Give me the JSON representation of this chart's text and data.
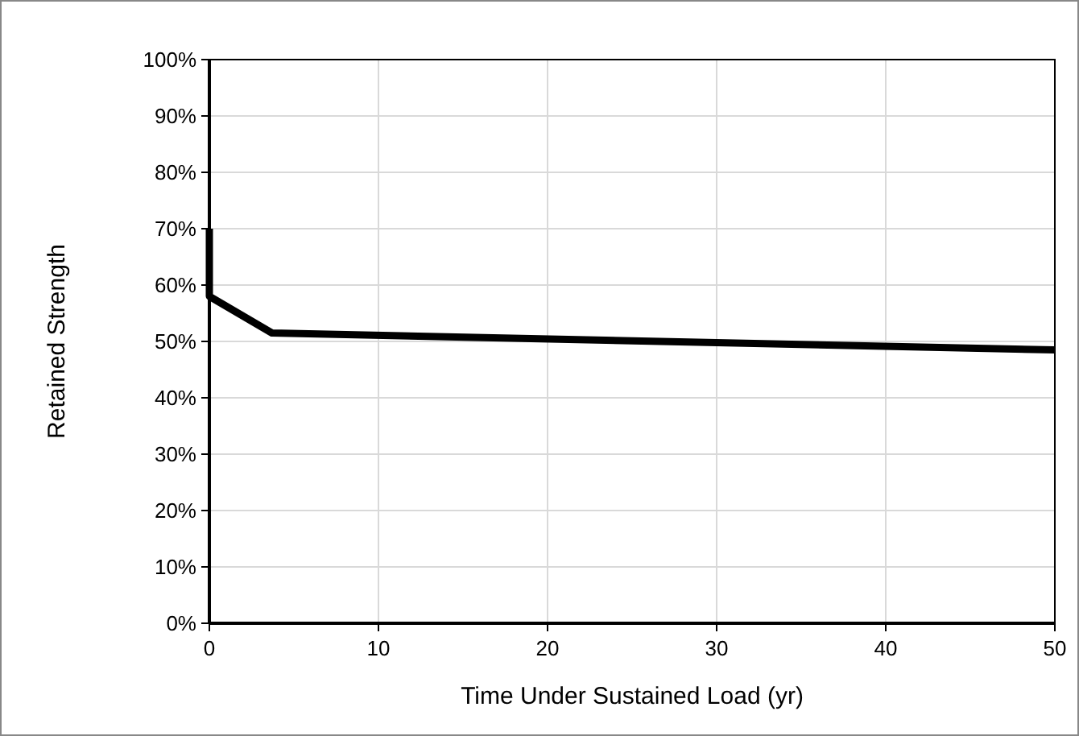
{
  "chart_data": {
    "type": "line",
    "xlabel": "Time Under Sustained Load (yr)",
    "ylabel": "Retained Strength",
    "x": [
      0,
      0,
      3.7,
      50
    ],
    "series": [
      {
        "color": "#000000",
        "values": [
          70,
          58,
          51.5,
          48.5
        ]
      }
    ],
    "xlim": [
      0,
      50
    ],
    "xticks": [
      0,
      10,
      20,
      30,
      40,
      50
    ],
    "ylim": [
      0,
      100
    ],
    "yticks": [
      {
        "value": 0,
        "label": "0%"
      },
      {
        "value": 10,
        "label": "10%"
      },
      {
        "value": 20,
        "label": "20%"
      },
      {
        "value": 30,
        "label": "30%"
      },
      {
        "value": 40,
        "label": "40%"
      },
      {
        "value": 50,
        "label": "50%"
      },
      {
        "value": 60,
        "label": "60%"
      },
      {
        "value": 70,
        "label": "70%"
      },
      {
        "value": 80,
        "label": "80%"
      },
      {
        "value": 90,
        "label": "90%"
      },
      {
        "value": 100,
        "label": "100%"
      }
    ],
    "grid": true,
    "marker": "none",
    "line_style": "solid"
  }
}
